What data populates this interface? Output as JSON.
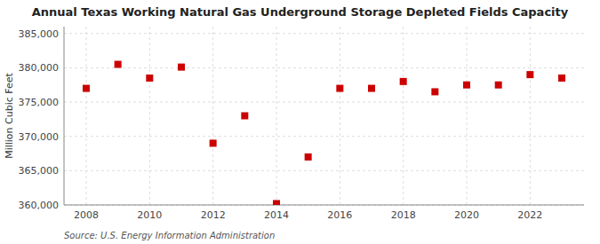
{
  "chart_data": {
    "type": "scatter",
    "title": "Annual Texas Working Natural Gas Underground Storage Depleted Fields Capacity",
    "ylabel": "Million Cubic Feet",
    "source": "Source: U.S. Energy Information Administration",
    "x": [
      2008,
      2009,
      2010,
      2011,
      2012,
      2013,
      2014,
      2015,
      2016,
      2017,
      2018,
      2019,
      2020,
      2021,
      2022,
      2023
    ],
    "values": [
      377000,
      380500,
      378500,
      380100,
      369000,
      373000,
      360200,
      367000,
      377000,
      377000,
      378000,
      376500,
      377500,
      377500,
      379000,
      378500
    ],
    "color": "#cc0000",
    "marker": "square",
    "xlim": [
      2007.3,
      2023.7
    ],
    "xticks": [
      2008,
      2010,
      2012,
      2014,
      2016,
      2018,
      2020,
      2022
    ],
    "ylim": [
      360000,
      386000
    ],
    "yticks": [
      {
        "value": 360000,
        "label": "360,000"
      },
      {
        "value": 365000,
        "label": "365,000"
      },
      {
        "value": 370000,
        "label": "370,000"
      },
      {
        "value": 375000,
        "label": "375,000"
      },
      {
        "value": 380000,
        "label": "380,000"
      },
      {
        "value": 385000,
        "label": "385,000"
      }
    ],
    "grid": true
  }
}
